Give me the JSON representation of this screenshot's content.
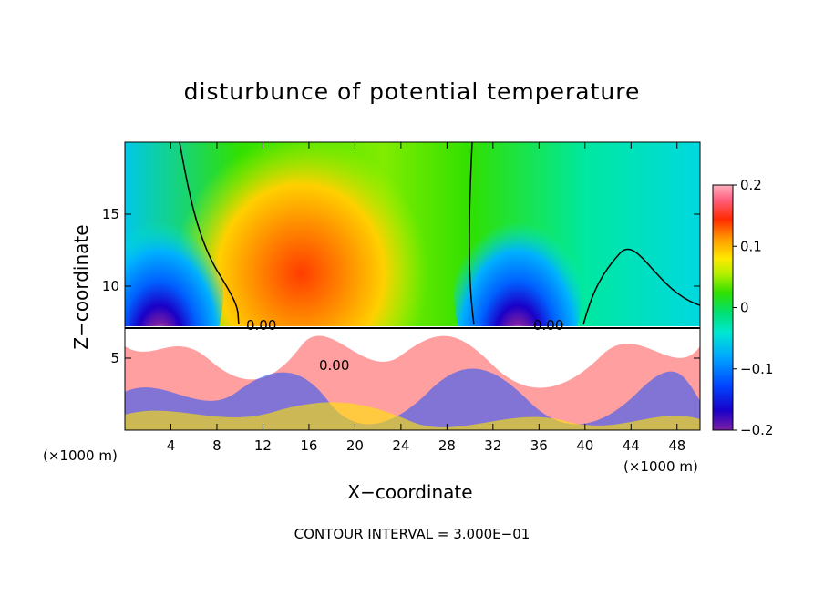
{
  "chart_data": {
    "type": "heatmap",
    "title": "disturbunce of potential temperature",
    "xlabel": "X−coordinate",
    "ylabel": "Z−coordinate",
    "x_unit_left": "(×1000 m)",
    "x_unit_right": "(×1000 m)",
    "xlim": [
      0,
      50
    ],
    "ylim": [
      0,
      20
    ],
    "xticks": [
      4,
      8,
      12,
      16,
      20,
      24,
      28,
      32,
      36,
      40,
      44,
      48
    ],
    "yticks": [
      5,
      10,
      15
    ],
    "colorbar": {
      "range": [
        -0.2,
        0.2
      ],
      "tick_values": [
        0.2,
        0.1,
        0,
        -0.1,
        -0.2
      ],
      "tick_labels": [
        "0.2",
        "0.1",
        "0",
        "−0.1",
        "−0.2"
      ]
    },
    "contour_labels": [
      "0.00",
      "0.00",
      "0.00"
    ],
    "contour_interval": "CONTOUR INTERVAL = 3.000E−01"
  }
}
